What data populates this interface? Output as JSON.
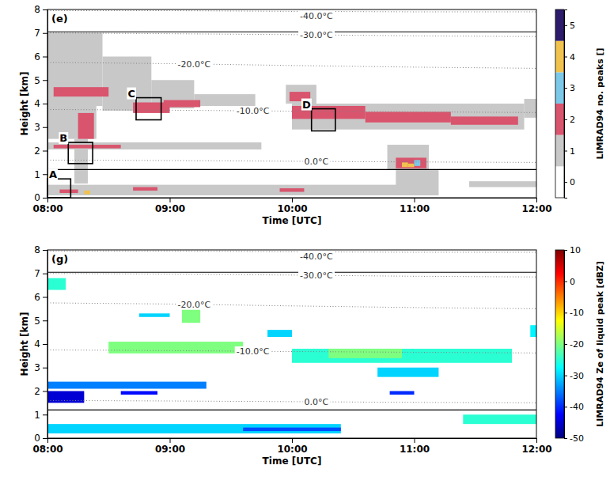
{
  "chart_data": [
    {
      "type": "heatmap",
      "title": "(e)",
      "xlabel": "Time [UTC]",
      "ylabel": "Height [km]",
      "xlim": [
        8,
        12
      ],
      "xticks": [
        {
          "value": 8,
          "label": "08:00"
        },
        {
          "value": 9,
          "label": "09:00"
        },
        {
          "value": 10,
          "label": "10:00"
        },
        {
          "value": 11,
          "label": "11:00"
        },
        {
          "value": 12,
          "label": "12:00"
        }
      ],
      "ylim": [
        0,
        8
      ],
      "yticks": [
        0,
        1,
        2,
        3,
        4,
        5,
        6,
        7,
        8
      ],
      "colorbar": {
        "label": "LIMRAD94 no. peaks []",
        "range": [
          -0.5,
          5.5
        ],
        "ticks": [
          0,
          1,
          2,
          3,
          4,
          5
        ],
        "colors": [
          "#ffffff",
          "#c8c8c8",
          "#d9546d",
          "#7cc8e8",
          "#f0c24e",
          "#2d1b6b"
        ]
      },
      "cells": [
        {
          "t0": 8.0,
          "t1": 8.45,
          "h0": 3.9,
          "h1": 7.0,
          "value": 1
        },
        {
          "t0": 8.45,
          "t1": 8.85,
          "h0": 3.7,
          "h1": 6.0,
          "value": 1
        },
        {
          "t0": 8.85,
          "t1": 9.2,
          "h0": 3.8,
          "h1": 5.0,
          "value": 1
        },
        {
          "t0": 9.2,
          "t1": 9.7,
          "h0": 3.9,
          "h1": 4.4,
          "value": 1
        },
        {
          "t0": 8.0,
          "t1": 8.4,
          "h0": 2.5,
          "h1": 3.9,
          "value": 1
        },
        {
          "t0": 8.22,
          "t1": 8.33,
          "h0": 0.6,
          "h1": 2.5,
          "value": 1
        },
        {
          "t0": 8.0,
          "t1": 9.75,
          "h0": 2.05,
          "h1": 2.35,
          "value": 1
        },
        {
          "t0": 8.0,
          "t1": 11.15,
          "h0": 0.1,
          "h1": 0.55,
          "value": 1
        },
        {
          "t0": 9.95,
          "t1": 10.2,
          "h0": 4.0,
          "h1": 4.8,
          "value": 1
        },
        {
          "t0": 10.0,
          "t1": 11.9,
          "h0": 2.9,
          "h1": 4.0,
          "value": 1
        },
        {
          "t0": 10.78,
          "t1": 11.12,
          "h0": 1.2,
          "h1": 2.25,
          "value": 1
        },
        {
          "t0": 10.85,
          "t1": 11.2,
          "h0": 0.1,
          "h1": 1.2,
          "value": 1
        },
        {
          "t0": 11.45,
          "t1": 12.0,
          "h0": 0.45,
          "h1": 0.7,
          "value": 1
        },
        {
          "t0": 11.9,
          "t1": 12.0,
          "h0": 3.4,
          "h1": 4.2,
          "value": 1
        },
        {
          "t0": 8.05,
          "t1": 8.5,
          "h0": 4.3,
          "h1": 4.7,
          "value": 2
        },
        {
          "t0": 8.25,
          "t1": 8.38,
          "h0": 2.5,
          "h1": 3.6,
          "value": 2
        },
        {
          "t0": 8.7,
          "t1": 9.0,
          "h0": 3.6,
          "h1": 4.05,
          "value": 2
        },
        {
          "t0": 8.95,
          "t1": 9.25,
          "h0": 3.85,
          "h1": 4.15,
          "value": 2
        },
        {
          "t0": 9.98,
          "t1": 10.15,
          "h0": 4.1,
          "h1": 4.5,
          "value": 2
        },
        {
          "t0": 10.0,
          "t1": 10.6,
          "h0": 3.35,
          "h1": 3.9,
          "value": 2
        },
        {
          "t0": 10.6,
          "t1": 11.3,
          "h0": 3.2,
          "h1": 3.65,
          "value": 2
        },
        {
          "t0": 11.3,
          "t1": 11.85,
          "h0": 3.1,
          "h1": 3.45,
          "value": 2
        },
        {
          "t0": 8.05,
          "t1": 8.6,
          "h0": 2.1,
          "h1": 2.25,
          "value": 2
        },
        {
          "t0": 8.1,
          "t1": 8.25,
          "h0": 0.2,
          "h1": 0.35,
          "value": 2
        },
        {
          "t0": 8.7,
          "t1": 8.9,
          "h0": 0.3,
          "h1": 0.45,
          "value": 2
        },
        {
          "t0": 9.9,
          "t1": 10.1,
          "h0": 0.25,
          "h1": 0.4,
          "value": 2
        },
        {
          "t0": 10.85,
          "t1": 11.1,
          "h0": 1.25,
          "h1": 1.7,
          "value": 2
        },
        {
          "t0": 10.9,
          "t1": 10.95,
          "h0": 1.3,
          "h1": 1.5,
          "value": 4
        },
        {
          "t0": 11.0,
          "t1": 11.05,
          "h0": 1.35,
          "h1": 1.6,
          "value": 3
        },
        {
          "t0": 10.95,
          "t1": 11.0,
          "h0": 1.3,
          "h1": 1.45,
          "value": 4
        },
        {
          "t0": 8.3,
          "t1": 8.35,
          "h0": 0.15,
          "h1": 0.3,
          "value": 4
        }
      ],
      "reference_lines": [
        7.05,
        1.2
      ],
      "x": [
        8,
        9,
        10,
        11,
        12
      ],
      "series": [
        {
          "name": "-40.0°C",
          "color": "#808080",
          "line_style": "dotted",
          "values": [
            7.95,
            7.95,
            7.92,
            7.9,
            7.9
          ]
        },
        {
          "name": "-30.0°C",
          "color": "#808080",
          "line_style": "dotted",
          "values": [
            7.0,
            6.97,
            6.93,
            6.88,
            6.85
          ]
        },
        {
          "name": "-20.0°C",
          "color": "#808080",
          "line_style": "dotted",
          "values": [
            5.75,
            5.7,
            5.62,
            5.55,
            5.5
          ]
        },
        {
          "name": "-10.0°C",
          "color": "#808080",
          "line_style": "dotted",
          "values": [
            3.75,
            3.72,
            3.68,
            3.65,
            3.62
          ]
        },
        {
          "name": "0.0°C",
          "color": "#808080",
          "line_style": "dotted",
          "values": [
            1.6,
            1.58,
            1.55,
            1.52,
            1.5
          ]
        }
      ],
      "boxes": [
        {
          "label": "A",
          "t0": 8.0,
          "t1": 8.19,
          "h0": 0.0,
          "h1": 0.8
        },
        {
          "label": "B",
          "t0": 8.17,
          "t1": 8.37,
          "h0": 1.45,
          "h1": 2.35
        },
        {
          "label": "C",
          "t0": 8.725,
          "t1": 8.93,
          "h0": 3.31,
          "h1": 4.25
        },
        {
          "label": "D",
          "t0": 10.16,
          "t1": 10.355,
          "h0": 2.84,
          "h1": 3.78
        }
      ]
    },
    {
      "type": "heatmap",
      "title": "(g)",
      "xlabel": "Time [UTC]",
      "ylabel": "Height [km]",
      "xlim": [
        8,
        12
      ],
      "xticks": [
        {
          "value": 8,
          "label": "08:00"
        },
        {
          "value": 9,
          "label": "09:00"
        },
        {
          "value": 10,
          "label": "10:00"
        },
        {
          "value": 11,
          "label": "11:00"
        },
        {
          "value": 12,
          "label": "12:00"
        }
      ],
      "ylim": [
        0,
        8
      ],
      "yticks": [
        0,
        1,
        2,
        3,
        4,
        5,
        6,
        7,
        8
      ],
      "colorbar": {
        "label": "LIMRAD94 Ze of liquid peak [dBZ]",
        "range": [
          -50,
          10
        ],
        "ticks": [
          -50,
          -40,
          -30,
          -20,
          -10,
          0,
          10
        ],
        "colors": [
          "#00007f",
          "#0000ff",
          "#007fff",
          "#00ffff",
          "#7fff7f",
          "#ffff00",
          "#ff7f00",
          "#ff0000",
          "#7f0000"
        ]
      },
      "cells": [
        {
          "t0": 8.0,
          "t1": 8.15,
          "h0": 6.3,
          "h1": 6.8,
          "value": -25
        },
        {
          "t0": 8.75,
          "t1": 9.0,
          "h0": 5.15,
          "h1": 5.3,
          "value": -30
        },
        {
          "t0": 9.1,
          "t1": 9.25,
          "h0": 4.9,
          "h1": 5.6,
          "value": -20
        },
        {
          "t0": 8.5,
          "t1": 9.6,
          "h0": 3.6,
          "h1": 4.1,
          "value": -20
        },
        {
          "t0": 8.0,
          "t1": 9.3,
          "h0": 2.1,
          "h1": 2.4,
          "value": -35
        },
        {
          "t0": 8.0,
          "t1": 8.3,
          "h0": 1.5,
          "h1": 2.0,
          "value": -45
        },
        {
          "t0": 8.0,
          "t1": 10.4,
          "h0": 0.2,
          "h1": 0.6,
          "value": -30
        },
        {
          "t0": 9.8,
          "t1": 10.0,
          "h0": 4.3,
          "h1": 4.6,
          "value": -30
        },
        {
          "t0": 10.0,
          "t1": 11.8,
          "h0": 3.2,
          "h1": 3.8,
          "value": -25
        },
        {
          "t0": 10.3,
          "t1": 10.9,
          "h0": 3.4,
          "h1": 3.8,
          "value": -20
        },
        {
          "t0": 10.7,
          "t1": 11.2,
          "h0": 2.6,
          "h1": 3.0,
          "value": -30
        },
        {
          "t0": 10.8,
          "t1": 11.0,
          "h0": 1.85,
          "h1": 2.0,
          "value": -40
        },
        {
          "t0": 11.4,
          "t1": 12.0,
          "h0": 0.6,
          "h1": 1.0,
          "value": -25
        },
        {
          "t0": 11.95,
          "t1": 12.0,
          "h0": 4.3,
          "h1": 4.8,
          "value": -28
        },
        {
          "t0": 8.6,
          "t1": 8.9,
          "h0": 1.85,
          "h1": 2.0,
          "value": -42
        },
        {
          "t0": 9.6,
          "t1": 10.4,
          "h0": 0.3,
          "h1": 0.45,
          "value": -38
        }
      ],
      "reference_lines": [
        7.05,
        1.2
      ],
      "x": [
        8,
        9,
        10,
        11,
        12
      ],
      "series": [
        {
          "name": "-40.0°C",
          "color": "#808080",
          "line_style": "dotted",
          "values": [
            7.95,
            7.95,
            7.92,
            7.9,
            7.9
          ]
        },
        {
          "name": "-30.0°C",
          "color": "#808080",
          "line_style": "dotted",
          "values": [
            7.0,
            6.97,
            6.93,
            6.88,
            6.85
          ]
        },
        {
          "name": "-20.0°C",
          "color": "#808080",
          "line_style": "dotted",
          "values": [
            5.75,
            5.7,
            5.62,
            5.55,
            5.5
          ]
        },
        {
          "name": "-10.0°C",
          "color": "#808080",
          "line_style": "dotted",
          "values": [
            3.75,
            3.72,
            3.68,
            3.65,
            3.62
          ]
        },
        {
          "name": "0.0°C",
          "color": "#808080",
          "line_style": "dotted",
          "values": [
            1.6,
            1.58,
            1.55,
            1.52,
            1.5
          ]
        }
      ]
    }
  ]
}
